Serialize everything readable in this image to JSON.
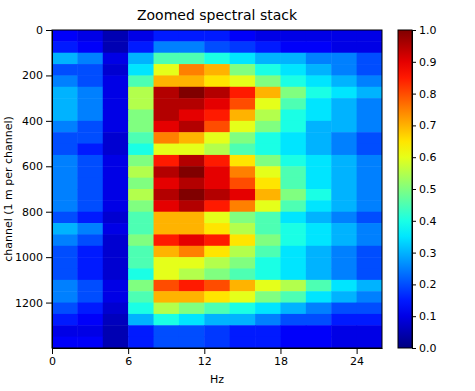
{
  "chart_data": {
    "type": "heatmap",
    "title": "Zoomed spectral stack",
    "x_label": "Hz",
    "y_label": "channel (1 m per channel)",
    "xlim": [
      0,
      26
    ],
    "ylim": [
      1400,
      0
    ],
    "xticks": [
      0,
      6,
      12,
      18,
      24
    ],
    "yticks": [
      0,
      200,
      400,
      600,
      800,
      1000,
      1200
    ],
    "x_bins": [
      0,
      2,
      4,
      6,
      8,
      10,
      12,
      14,
      16,
      18,
      20,
      22,
      24,
      26
    ],
    "y_bins": [
      0,
      50,
      100,
      150,
      200,
      250,
      300,
      350,
      400,
      450,
      500,
      550,
      600,
      650,
      700,
      750,
      800,
      850,
      900,
      950,
      1000,
      1050,
      1100,
      1150,
      1200,
      1250,
      1300,
      1350,
      1400
    ],
    "values": [
      [
        0.12,
        0.1,
        0.05,
        0.1,
        0.15,
        0.15,
        0.15,
        0.12,
        0.1,
        0.1,
        0.1,
        0.1,
        0.1
      ],
      [
        0.15,
        0.12,
        0.05,
        0.15,
        0.25,
        0.25,
        0.2,
        0.18,
        0.15,
        0.12,
        0.12,
        0.1,
        0.1
      ],
      [
        0.3,
        0.25,
        0.1,
        0.3,
        0.45,
        0.45,
        0.4,
        0.35,
        0.3,
        0.3,
        0.25,
        0.25,
        0.2
      ],
      [
        0.2,
        0.2,
        0.08,
        0.35,
        0.6,
        0.75,
        0.7,
        0.5,
        0.4,
        0.35,
        0.3,
        0.25,
        0.2
      ],
      [
        0.25,
        0.2,
        0.1,
        0.45,
        0.7,
        0.7,
        0.65,
        0.6,
        0.5,
        0.4,
        0.35,
        0.3,
        0.25
      ],
      [
        0.3,
        0.25,
        0.1,
        0.55,
        0.95,
        1.0,
        0.95,
        0.85,
        0.7,
        0.5,
        0.4,
        0.35,
        0.3
      ],
      [
        0.3,
        0.25,
        0.1,
        0.55,
        0.95,
        0.95,
        0.9,
        0.8,
        0.6,
        0.45,
        0.35,
        0.3,
        0.25
      ],
      [
        0.3,
        0.25,
        0.1,
        0.5,
        0.95,
        0.9,
        0.85,
        0.7,
        0.55,
        0.4,
        0.35,
        0.3,
        0.25
      ],
      [
        0.25,
        0.2,
        0.1,
        0.5,
        0.9,
        0.95,
        0.8,
        0.6,
        0.5,
        0.4,
        0.3,
        0.3,
        0.25
      ],
      [
        0.2,
        0.2,
        0.08,
        0.45,
        0.75,
        0.7,
        0.6,
        0.5,
        0.4,
        0.35,
        0.3,
        0.25,
        0.2
      ],
      [
        0.2,
        0.15,
        0.08,
        0.4,
        0.6,
        0.6,
        0.55,
        0.45,
        0.4,
        0.35,
        0.3,
        0.25,
        0.2
      ],
      [
        0.25,
        0.2,
        0.1,
        0.5,
        0.85,
        0.95,
        0.85,
        0.65,
        0.5,
        0.4,
        0.35,
        0.3,
        0.25
      ],
      [
        0.25,
        0.2,
        0.1,
        0.55,
        0.95,
        1.0,
        0.9,
        0.75,
        0.6,
        0.45,
        0.35,
        0.3,
        0.25
      ],
      [
        0.25,
        0.2,
        0.1,
        0.5,
        0.9,
        0.95,
        0.9,
        0.8,
        0.65,
        0.45,
        0.35,
        0.3,
        0.25
      ],
      [
        0.25,
        0.2,
        0.1,
        0.55,
        0.95,
        1.0,
        0.95,
        0.9,
        0.7,
        0.5,
        0.4,
        0.3,
        0.25
      ],
      [
        0.25,
        0.2,
        0.1,
        0.5,
        0.9,
        0.95,
        0.85,
        0.75,
        0.6,
        0.45,
        0.35,
        0.3,
        0.25
      ],
      [
        0.2,
        0.15,
        0.08,
        0.45,
        0.7,
        0.7,
        0.6,
        0.5,
        0.45,
        0.35,
        0.3,
        0.25,
        0.2
      ],
      [
        0.3,
        0.25,
        0.1,
        0.45,
        0.7,
        0.7,
        0.65,
        0.55,
        0.45,
        0.4,
        0.35,
        0.3,
        0.25
      ],
      [
        0.25,
        0.2,
        0.08,
        0.5,
        0.85,
        0.9,
        0.85,
        0.65,
        0.5,
        0.4,
        0.35,
        0.3,
        0.25
      ],
      [
        0.2,
        0.15,
        0.08,
        0.45,
        0.7,
        0.75,
        0.65,
        0.55,
        0.45,
        0.35,
        0.3,
        0.25,
        0.2
      ],
      [
        0.2,
        0.15,
        0.08,
        0.45,
        0.6,
        0.6,
        0.55,
        0.5,
        0.4,
        0.35,
        0.3,
        0.25,
        0.2
      ],
      [
        0.2,
        0.15,
        0.08,
        0.4,
        0.6,
        0.55,
        0.5,
        0.45,
        0.4,
        0.35,
        0.3,
        0.25,
        0.2
      ],
      [
        0.25,
        0.2,
        0.1,
        0.5,
        0.8,
        0.85,
        0.8,
        0.7,
        0.6,
        0.55,
        0.45,
        0.35,
        0.3
      ],
      [
        0.25,
        0.2,
        0.1,
        0.45,
        0.7,
        0.7,
        0.65,
        0.6,
        0.5,
        0.45,
        0.35,
        0.3,
        0.25
      ],
      [
        0.2,
        0.15,
        0.08,
        0.4,
        0.55,
        0.5,
        0.45,
        0.4,
        0.35,
        0.3,
        0.25,
        0.2,
        0.2
      ],
      [
        0.15,
        0.12,
        0.06,
        0.3,
        0.4,
        0.35,
        0.3,
        0.3,
        0.25,
        0.2,
        0.2,
        0.15,
        0.15
      ],
      [
        0.1,
        0.1,
        0.05,
        0.15,
        0.2,
        0.2,
        0.18,
        0.15,
        0.15,
        0.12,
        0.12,
        0.1,
        0.1
      ],
      [
        0.12,
        0.12,
        0.05,
        0.15,
        0.2,
        0.2,
        0.18,
        0.15,
        0.15,
        0.12,
        0.12,
        0.1,
        0.1
      ]
    ],
    "color_range": [
      0,
      1
    ],
    "color_ticks": [
      {
        "value": 0,
        "label": "0.0"
      },
      {
        "value": 0.1,
        "label": "0.1"
      },
      {
        "value": 0.2,
        "label": "0.2"
      },
      {
        "value": 0.3,
        "label": "0.3"
      },
      {
        "value": 0.4,
        "label": "0.4"
      },
      {
        "value": 0.5,
        "label": "0.5"
      },
      {
        "value": 0.6,
        "label": "0.6"
      },
      {
        "value": 0.7,
        "label": "0.7"
      },
      {
        "value": 0.8,
        "label": "0.8"
      },
      {
        "value": 0.9,
        "label": "0.9"
      },
      {
        "value": 1,
        "label": "1.0"
      }
    ]
  }
}
